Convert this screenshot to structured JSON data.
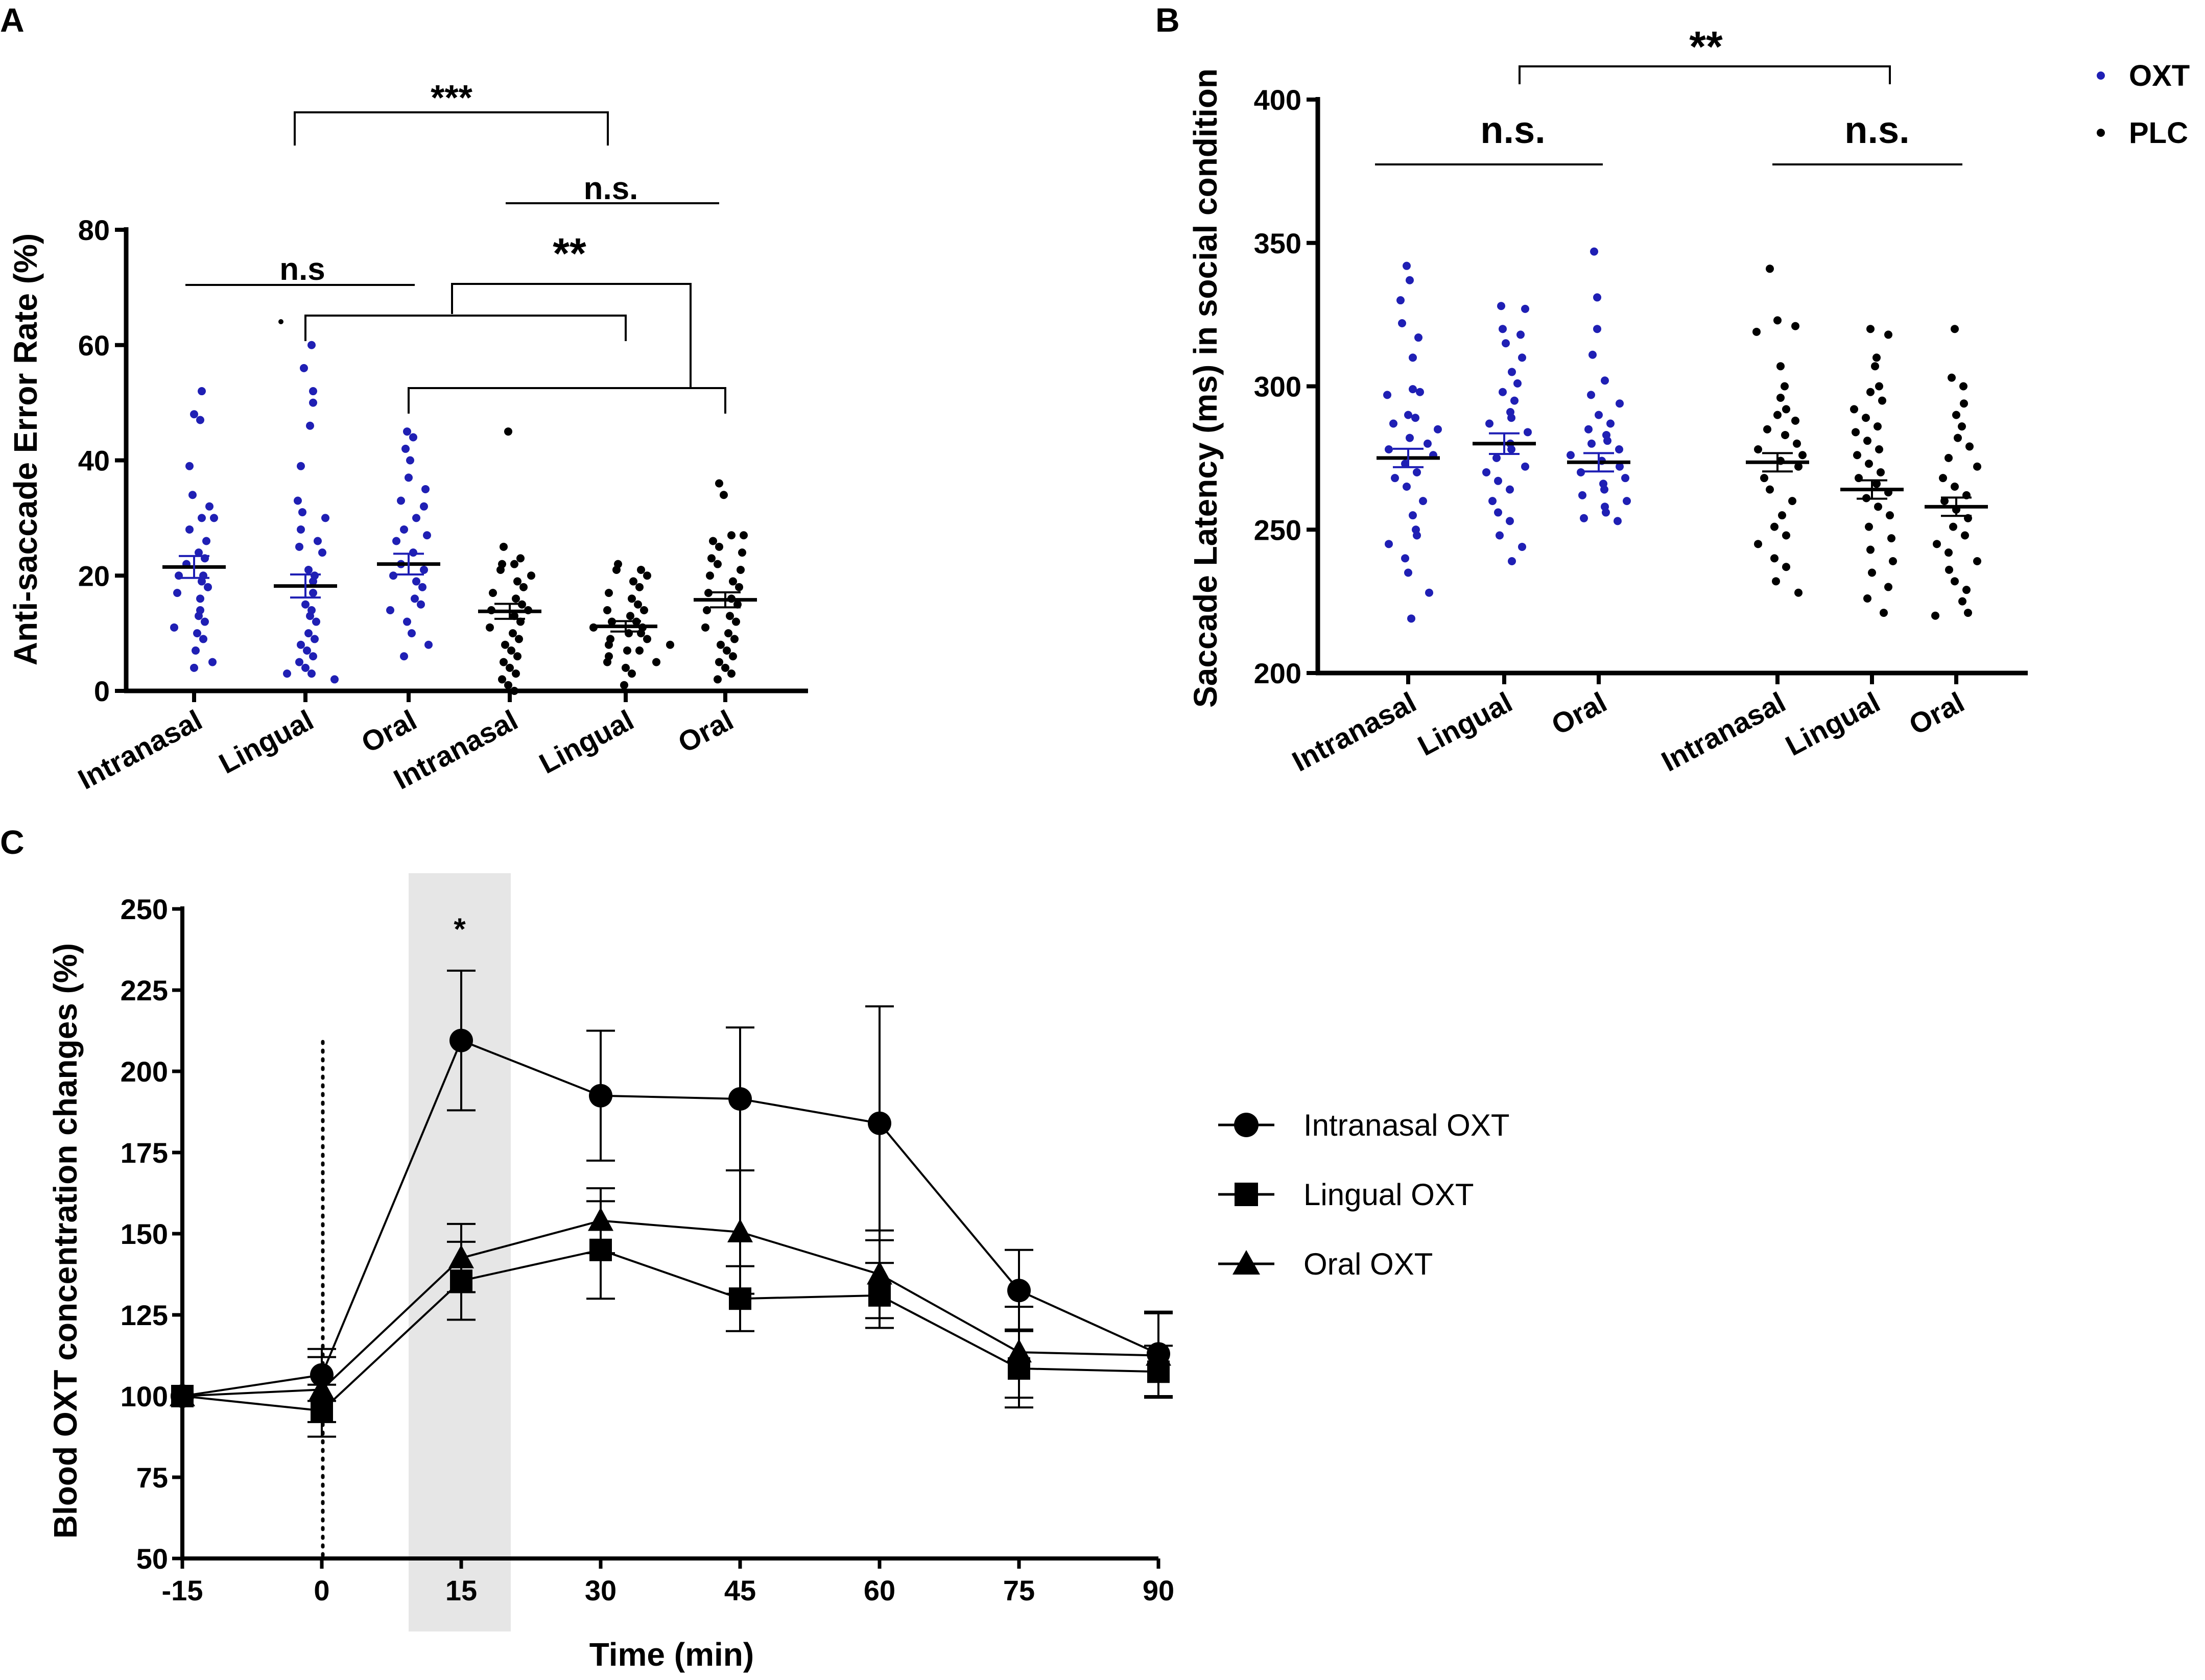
{
  "figure": {
    "panel_labels": [
      "A",
      "B",
      "C"
    ]
  },
  "chart_data": [
    {
      "type": "scatter",
      "panel": "A",
      "ylabel": "Anti-saccade Error Rate (%)",
      "ylim": [
        0,
        80
      ],
      "yticks": [
        0,
        20,
        40,
        60,
        80
      ],
      "categories": [
        "Intranasal",
        "Lingual",
        "Oral",
        "Intranasal",
        "Lingual",
        "Oral"
      ],
      "colors": [
        "#1f1fb4",
        "#1f1fb4",
        "#1f1fb4",
        "#000000",
        "#000000",
        "#000000"
      ],
      "means": [
        21.5,
        18.2,
        22.0,
        13.8,
        11.2,
        15.8
      ],
      "sems": [
        1.9,
        2.0,
        1.8,
        1.3,
        0.9,
        1.3
      ],
      "points": [
        [
          52,
          48,
          47,
          39,
          34,
          32,
          30,
          30,
          28,
          26,
          24,
          23,
          22,
          20,
          20,
          19,
          18,
          17,
          16,
          14,
          13,
          12,
          11,
          10,
          9,
          7,
          5,
          4
        ],
        [
          60,
          56,
          52,
          50,
          46,
          39,
          33,
          31,
          30,
          28,
          26,
          25,
          24,
          21,
          20,
          19,
          17,
          15,
          14,
          13,
          12,
          10,
          9,
          8,
          7,
          6,
          5,
          4,
          3,
          3,
          2
        ],
        [
          45,
          44,
          42,
          40,
          37,
          35,
          33,
          32,
          30,
          28,
          27,
          26,
          24,
          22,
          21,
          20,
          19,
          18,
          16,
          15,
          14,
          12,
          10,
          8,
          6
        ],
        [
          45,
          25,
          23,
          22,
          22,
          21,
          20,
          19,
          18,
          17,
          16,
          15,
          14,
          14,
          13,
          12,
          11,
          10,
          9,
          8,
          7,
          6,
          5,
          4,
          3,
          2,
          1,
          0
        ],
        [
          22,
          21,
          21,
          20,
          19,
          18,
          17,
          16,
          15,
          14,
          14,
          13,
          12,
          12,
          11,
          11,
          10,
          10,
          9,
          9,
          8,
          8,
          7,
          7,
          6,
          5,
          5,
          4,
          3,
          1
        ],
        [
          36,
          34,
          27,
          27,
          26,
          25,
          24,
          23,
          22,
          21,
          20,
          19,
          18,
          17,
          16,
          15,
          14,
          13,
          12,
          11,
          10,
          9,
          8,
          7,
          6,
          5,
          4,
          3,
          2
        ]
      ],
      "annotations": [
        "***",
        "n.s.",
        "n.s",
        "**"
      ]
    },
    {
      "type": "scatter",
      "panel": "B",
      "ylabel": "Saccade Latency (ms) in social condition",
      "ylim": [
        200,
        400
      ],
      "yticks": [
        200,
        250,
        300,
        350,
        400
      ],
      "categories": [
        "Intranasal",
        "Lingual",
        "Oral",
        "Intranasal",
        "Lingual",
        "Oral"
      ],
      "colors": [
        "#1f1fb4",
        "#1f1fb4",
        "#1f1fb4",
        "#000000",
        "#000000",
        "#000000"
      ],
      "means": [
        275,
        280,
        273.5,
        273.5,
        264,
        258
      ],
      "sems": [
        3.2,
        3.6,
        3.2,
        3.2,
        3.2,
        3.2
      ],
      "points": [
        [
          342,
          337,
          330,
          322,
          317,
          310,
          299,
          298,
          297,
          290,
          289,
          287,
          285,
          282,
          280,
          278,
          276,
          273,
          270,
          268,
          265,
          260,
          255,
          250,
          248,
          245,
          240,
          235,
          228,
          219
        ],
        [
          328,
          327,
          320,
          318,
          315,
          310,
          305,
          301,
          298,
          295,
          291,
          289,
          287,
          284,
          280,
          278,
          275,
          272,
          270,
          267,
          264,
          260,
          256,
          253,
          248,
          244,
          239
        ],
        [
          347,
          331,
          320,
          311,
          302,
          297,
          294,
          290,
          287,
          285,
          283,
          281,
          280,
          278,
          276,
          274,
          272,
          270,
          268,
          266,
          264,
          262,
          260,
          258,
          256,
          254,
          253
        ],
        [
          341,
          323,
          321,
          319,
          307,
          300,
          296,
          292,
          290,
          288,
          285,
          283,
          280,
          278,
          276,
          274,
          272,
          268,
          264,
          260,
          255,
          251,
          248,
          245,
          240,
          237,
          232,
          228
        ],
        [
          320,
          318,
          310,
          307,
          300,
          298,
          295,
          292,
          289,
          286,
          284,
          281,
          278,
          276,
          273,
          270,
          268,
          266,
          263,
          261,
          258,
          255,
          251,
          247,
          243,
          239,
          235,
          230,
          226,
          221
        ],
        [
          320,
          303,
          300,
          294,
          290,
          286,
          282,
          279,
          275,
          272,
          268,
          265,
          262,
          260,
          257,
          254,
          251,
          248,
          245,
          242,
          239,
          236,
          232,
          229,
          225,
          221,
          220
        ]
      ],
      "legend": [
        {
          "label": "OXT",
          "color": "#1f1fb4"
        },
        {
          "label": "PLC",
          "color": "#000000"
        }
      ],
      "annotations": [
        "**",
        "n.s.",
        "n.s."
      ]
    },
    {
      "type": "line",
      "panel": "C",
      "xlabel": "Time (min)",
      "ylabel": "Blood OXT concentration changes (%)",
      "x": [
        -15,
        0,
        15,
        30,
        45,
        60,
        75,
        90
      ],
      "xlim": [
        -15,
        90
      ],
      "ylim": [
        50,
        250
      ],
      "yticks": [
        50,
        75,
        100,
        125,
        150,
        175,
        200,
        225,
        250
      ],
      "highlight_x_range": [
        10,
        20
      ],
      "dotted_line_x": 0,
      "annotation": "*",
      "series": [
        {
          "name": "Intranasal OXT",
          "marker": "circle",
          "values": [
            100,
            106.5,
            209.5,
            192.5,
            191.5,
            184,
            132.5,
            113
          ],
          "errors": [
            0,
            8,
            21.5,
            20,
            22,
            36,
            12.5,
            13
          ]
        },
        {
          "name": "Lingual OXT",
          "marker": "square",
          "values": [
            100,
            95.5,
            135.5,
            145,
            130,
            131,
            108.5,
            107.5
          ],
          "errors": [
            0,
            8,
            12,
            15,
            10,
            10,
            12,
            8
          ]
        },
        {
          "name": "Oral OXT",
          "marker": "triangle",
          "values": [
            100,
            102,
            142.5,
            154,
            150.5,
            137.5,
            113.5,
            112.5
          ],
          "errors": [
            0,
            10,
            10.5,
            10,
            19,
            13.5,
            14,
            13
          ]
        }
      ]
    }
  ]
}
